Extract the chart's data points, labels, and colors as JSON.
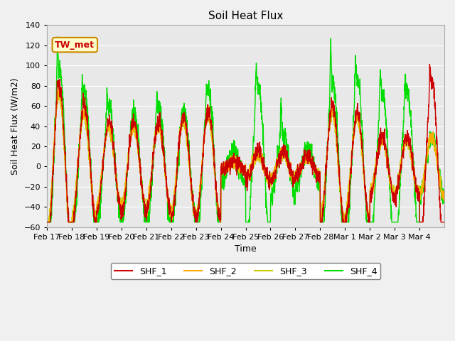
{
  "title": "Soil Heat Flux",
  "xlabel": "Time",
  "ylabel": "Soil Heat Flux (W/m2)",
  "ylim": [
    -60,
    140
  ],
  "yticks": [
    -60,
    -40,
    -20,
    0,
    20,
    40,
    60,
    80,
    100,
    120,
    140
  ],
  "x_tick_positions": [
    0,
    1,
    2,
    3,
    4,
    5,
    6,
    7,
    8,
    9,
    10,
    11,
    12,
    13,
    14,
    15
  ],
  "x_tick_labels": [
    "Feb 17",
    "Feb 18",
    "Feb 19",
    "Feb 20",
    "Feb 21",
    "Feb 22",
    "Feb 23",
    "Feb 24",
    "Feb 25",
    "Feb 26",
    "Feb 27",
    "Feb 28",
    "Mar 1",
    "Mar 2",
    "Mar 3",
    "Mar 4"
  ],
  "colors": {
    "SHF_1": "#cc0000",
    "SHF_2": "#ffaa00",
    "SHF_3": "#cccc00",
    "SHF_4": "#00dd00"
  },
  "legend_labels": [
    "SHF_1",
    "SHF_2",
    "SHF_3",
    "SHF_4"
  ],
  "annotation_text": "TW_met",
  "background_color": "#e8e8e8",
  "fig_background": "#f0f0f0",
  "grid_color": "#ffffff",
  "line_width": 1.0,
  "n_days": 16
}
